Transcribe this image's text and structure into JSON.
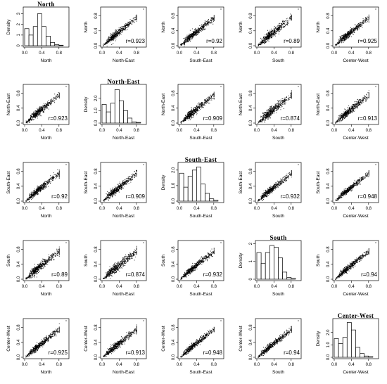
{
  "chart_data": {
    "type": "scatter",
    "layout": "pairs-matrix",
    "variables": [
      "North",
      "North-East",
      "South-East",
      "South",
      "Center-West"
    ],
    "diagonal": {
      "type": "histogram",
      "ylabel": "Density",
      "bin_edges": [
        0.0,
        0.1,
        0.2,
        0.3,
        0.4,
        0.5,
        0.6,
        0.7,
        0.8,
        0.9
      ],
      "x_ticks": [
        "0.0",
        "0.4",
        "0.8"
      ],
      "densities": {
        "North": [
          1.6,
          1.0,
          1.8,
          3.0,
          1.8,
          0.9,
          0.3,
          0.1,
          0.05
        ],
        "North-East": [
          1.5,
          0.9,
          1.6,
          2.7,
          1.8,
          1.0,
          0.4,
          0.1,
          0.05
        ],
        "South-East": [
          1.8,
          0.9,
          1.6,
          2.0,
          2.2,
          1.1,
          0.5,
          0.15,
          0.05
        ],
        "South": [
          1.5,
          0.9,
          1.5,
          1.9,
          1.8,
          1.2,
          0.4,
          0.1,
          0.05
        ],
        "Center-West": [
          1.5,
          1.1,
          1.6,
          2.8,
          2.2,
          0.8,
          0.3,
          0.1,
          0.05
        ]
      },
      "y_ticks": {
        "North": [
          "0",
          "1",
          "2",
          "3"
        ],
        "North-East": [
          "0.0",
          "1.0",
          "2.0"
        ],
        "South-East": [
          "0.0",
          "1.0",
          "2.0"
        ],
        "South": [
          "0",
          "1",
          "2"
        ],
        "Center-West": [
          "0.0",
          "1.0",
          "2.0"
        ]
      },
      "ymax": {
        "North": 3.5,
        "North-East": 3.0,
        "South-East": 2.4,
        "South": 2.1,
        "Center-West": 3.0
      }
    },
    "scatter": {
      "x_ticks": [
        "0.0",
        "0.4",
        "0.8"
      ],
      "y_ticks": [
        "0.0",
        "0.4",
        "0.8"
      ],
      "xlim": [
        0,
        1
      ],
      "ylim": [
        0,
        1
      ],
      "approx_points_per_panel": 600
    },
    "correlations": {
      "North|North-East": "0.923",
      "North|South-East": "0.92",
      "North|South": "0.89",
      "North|Center-West": "0.925",
      "North-East|South-East": "0.909",
      "North-East|South": "0.874",
      "North-East|Center-West": "0.913",
      "South-East|South": "0.932",
      "South-East|Center-West": "0.948",
      "South|Center-West": "0.94"
    },
    "r_prefix": "r="
  }
}
